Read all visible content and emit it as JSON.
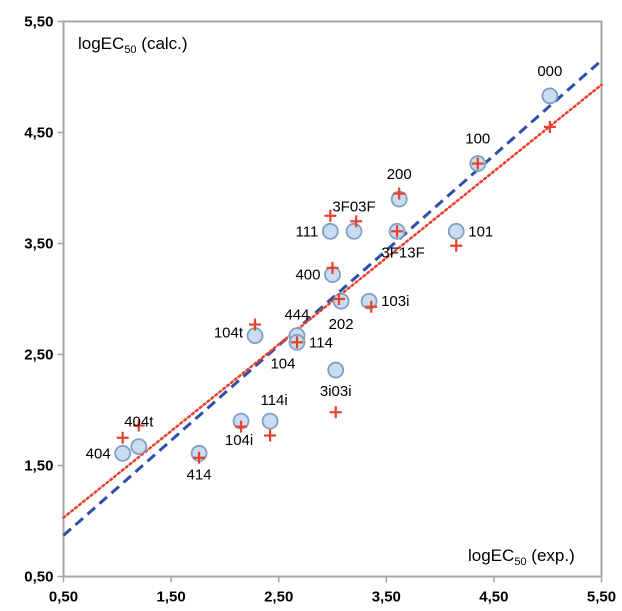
{
  "chart_data": {
    "type": "scatter",
    "title": "",
    "xlabel": "logEC50 (exp.)",
    "ylabel": "logEC50 (calc.)",
    "xlabel_parts": {
      "main": "logEC",
      "sub": "50",
      "suffix": " (exp.)"
    },
    "ylabel_parts": {
      "main": "logEC",
      "sub": "50",
      "suffix": " (calc.)"
    },
    "xlim": [
      0.5,
      5.5
    ],
    "ylim": [
      0.5,
      5.5
    ],
    "xticks": [
      "0,50",
      "1,50",
      "2,50",
      "3,50",
      "4,50",
      "5,50"
    ],
    "yticks": [
      "0,50",
      "1,50",
      "2,50",
      "3,50",
      "4,50",
      "5,50"
    ],
    "grid": false,
    "series": [
      {
        "marker": "circle",
        "color": "#c9dcf0",
        "edge": "#7f9fc6",
        "points": [
          {
            "label": "000",
            "x": 5.02,
            "y": 4.83
          },
          {
            "label": "100",
            "x": 4.35,
            "y": 4.22
          },
          {
            "label": "101",
            "x": 4.15,
            "y": 3.61
          },
          {
            "label": "200",
            "x": 3.62,
            "y": 3.9
          },
          {
            "label": "3F03F",
            "x": 3.2,
            "y": 3.61
          },
          {
            "label": "111",
            "x": 2.98,
            "y": 3.61
          },
          {
            "label": "3F13F",
            "x": 3.6,
            "y": 3.61
          },
          {
            "label": "400",
            "x": 3.0,
            "y": 3.22
          },
          {
            "label": "202",
            "x": 3.08,
            "y": 2.98
          },
          {
            "label": "103i",
            "x": 3.34,
            "y": 2.98
          },
          {
            "label": "444",
            "x": 2.67,
            "y": 2.67
          },
          {
            "label": "114",
            "x": 2.67,
            "y": 2.61
          },
          {
            "label": "104t",
            "x": 2.28,
            "y": 2.67
          },
          {
            "label": "3i03i",
            "x": 3.03,
            "y": 2.36
          },
          {
            "label": "114i",
            "x": 2.42,
            "y": 1.9
          },
          {
            "label": "104i",
            "x": 2.15,
            "y": 1.9
          },
          {
            "label": "404t",
            "x": 1.2,
            "y": 1.67
          },
          {
            "label": "404",
            "x": 1.05,
            "y": 1.61
          },
          {
            "label": "414",
            "x": 1.76,
            "y": 1.61
          }
        ]
      },
      {
        "marker": "plus",
        "color": "#e8412c",
        "points": [
          {
            "x": 5.02,
            "y": 4.55
          },
          {
            "x": 4.35,
            "y": 4.22
          },
          {
            "x": 4.15,
            "y": 3.48
          },
          {
            "x": 3.62,
            "y": 3.95
          },
          {
            "x": 3.22,
            "y": 3.7
          },
          {
            "x": 2.98,
            "y": 3.75
          },
          {
            "x": 3.6,
            "y": 3.61
          },
          {
            "x": 3.0,
            "y": 3.28
          },
          {
            "x": 3.06,
            "y": 3.0
          },
          {
            "x": 3.36,
            "y": 2.93
          },
          {
            "x": 2.28,
            "y": 2.77
          },
          {
            "x": 2.67,
            "y": 2.61
          },
          {
            "x": 3.03,
            "y": 1.98
          },
          {
            "x": 2.42,
            "y": 1.77
          },
          {
            "x": 2.15,
            "y": 1.85
          },
          {
            "x": 1.2,
            "y": 1.86
          },
          {
            "x": 1.05,
            "y": 1.75
          },
          {
            "x": 1.76,
            "y": 1.57
          }
        ]
      }
    ],
    "trendlines": [
      {
        "style": "dashed",
        "color": "#2f4fa8",
        "x": [
          0.5,
          5.5
        ],
        "y": [
          0.87,
          5.15
        ]
      },
      {
        "style": "dotted",
        "color": "#e8412c",
        "x": [
          0.5,
          5.5
        ],
        "y": [
          1.03,
          4.93
        ]
      }
    ]
  }
}
